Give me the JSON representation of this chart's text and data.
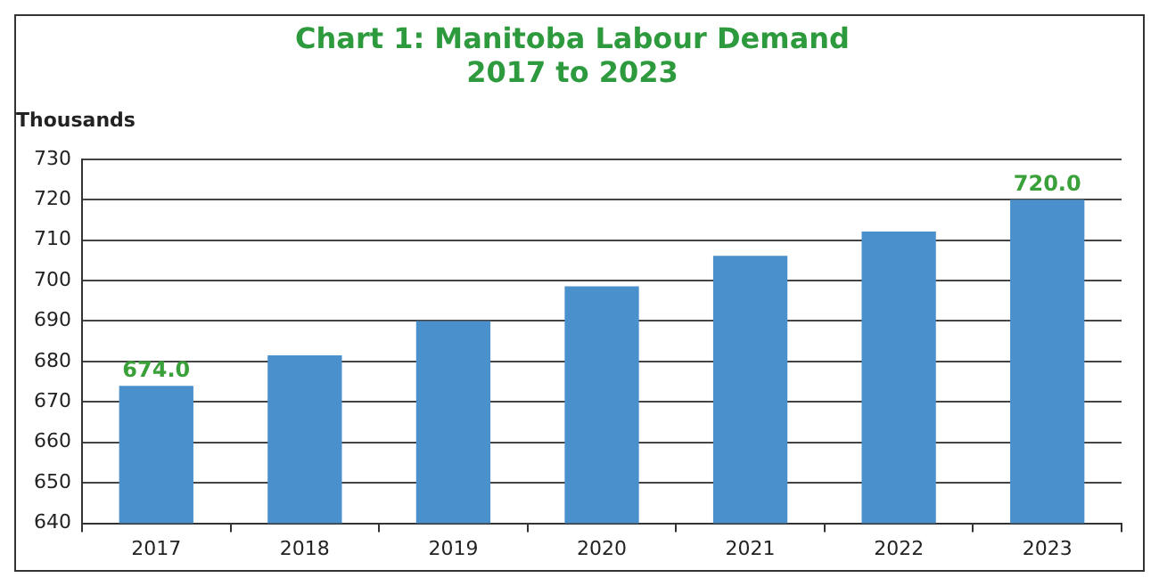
{
  "chart_data": {
    "type": "bar",
    "title": "Chart 1: Manitoba Labour Demand\n2017 to 2023",
    "ylabel": "Thousands",
    "categories": [
      "2017",
      "2018",
      "2019",
      "2020",
      "2021",
      "2022",
      "2023"
    ],
    "values": [
      674.0,
      681.5,
      690.0,
      698.6,
      706.1,
      712.1,
      720.0
    ],
    "value_labels": [
      "674.0",
      null,
      null,
      null,
      null,
      null,
      "720.0"
    ],
    "color": "#4a90cd",
    "ylim": [
      640,
      730
    ],
    "yticks": [
      640,
      650,
      660,
      670,
      680,
      690,
      700,
      710,
      720,
      730
    ],
    "grid": "y"
  }
}
